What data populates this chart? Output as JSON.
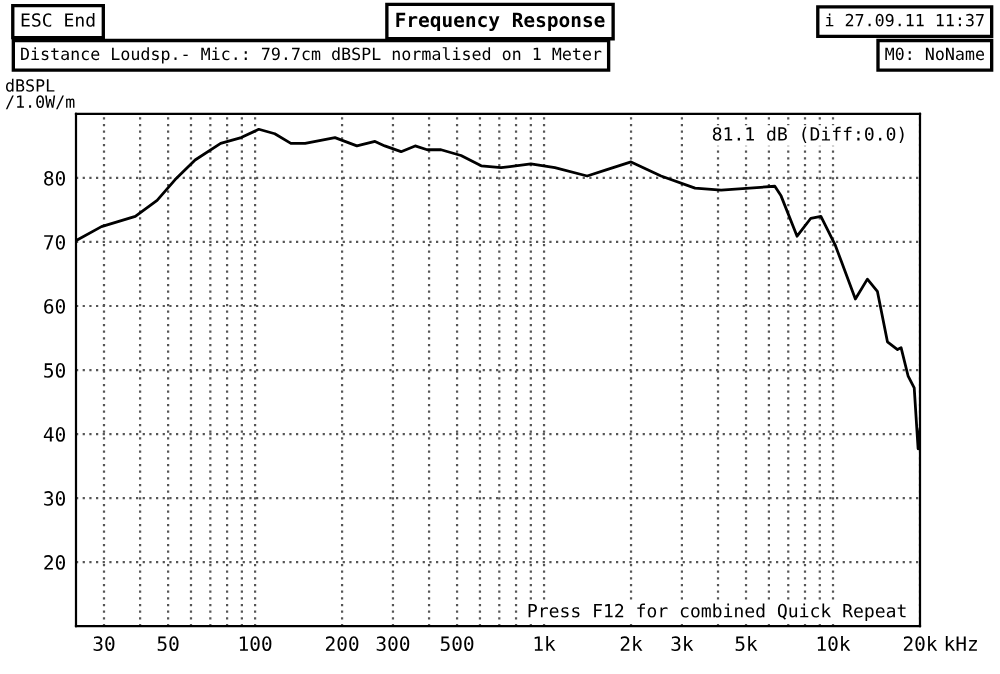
{
  "chart_data": {
    "type": "line",
    "title": "Frequency Response",
    "subtitle": "Distance Loudsp.- Mic.: 79.7cm dBSPL normalised on 1 Meter",
    "ylabel": "dBSPL\n/1.0W/m",
    "annotations": [
      "ESC End",
      "i 27.09.11 11:37",
      "M0: NoName",
      "81.1 dB (Diff:0.0)",
      "Press F12 for combined Quick Repeat"
    ],
    "log": "x",
    "grid": true,
    "legend": false,
    "marker": "none",
    "line_style": "solid",
    "xlim": [
      24,
      20000
    ],
    "ylim": [
      10,
      90
    ],
    "xticks": [
      30,
      {
        "value": 40,
        "label": null
      },
      50,
      {
        "value": 60,
        "label": null
      },
      {
        "value": 70,
        "label": null
      },
      {
        "value": 80,
        "label": null
      },
      {
        "value": 90,
        "label": null
      },
      100,
      200,
      300,
      {
        "value": 400,
        "label": null
      },
      500,
      {
        "value": 600,
        "label": null
      },
      {
        "value": 700,
        "label": null
      },
      {
        "value": 800,
        "label": null
      },
      {
        "value": 900,
        "label": null
      },
      {
        "value": 1000,
        "label": "1k"
      },
      {
        "value": 2000,
        "label": "2k"
      },
      {
        "value": 3000,
        "label": "3k"
      },
      {
        "value": 4000,
        "label": null
      },
      {
        "value": 5000,
        "label": "5k"
      },
      {
        "value": 6000,
        "label": null
      },
      {
        "value": 7000,
        "label": null
      },
      {
        "value": 8000,
        "label": null
      },
      {
        "value": 9000,
        "label": null
      },
      {
        "value": 10000,
        "label": "10k"
      },
      {
        "value": 20000,
        "label": "20k"
      }
    ],
    "xlabel": "kHz",
    "yticks": [
      20,
      30,
      40,
      50,
      60,
      70,
      80,
      {
        "value": 90,
        "label": null
      }
    ],
    "series": [
      {
        "color": "#000000",
        "x": [
          24,
          29.4,
          38.5,
          45.8,
          52.8,
          62,
          76,
          89.5,
          103,
          117,
          133,
          149,
          189,
          225,
          260,
          281,
          320,
          358,
          394,
          440,
          516,
          606,
          710,
          900,
          1090,
          1410,
          1650,
          2000,
          2540,
          3330,
          4100,
          6290,
          6610,
          7510,
          8380,
          9080,
          10160,
          10660,
          11950,
          13150,
          14240,
          15430,
          16720,
          17200,
          18180,
          19100,
          19700,
          20000
        ],
        "values": [
          70.2,
          72.4,
          74,
          76.5,
          79.7,
          82.8,
          85.4,
          86.3,
          87.6,
          86.9,
          85.4,
          85.4,
          86.3,
          85,
          85.7,
          85,
          84.1,
          85,
          84.4,
          84.4,
          83.5,
          81.9,
          81.6,
          82.2,
          81.6,
          80.3,
          81.3,
          82.5,
          80.3,
          78.4,
          78.1,
          78.7,
          77.2,
          70.9,
          73.7,
          74,
          69.6,
          67.1,
          61.1,
          64.2,
          62.3,
          54.4,
          53.2,
          53.5,
          49.1,
          47.2,
          37.7,
          40.8
        ]
      }
    ]
  }
}
